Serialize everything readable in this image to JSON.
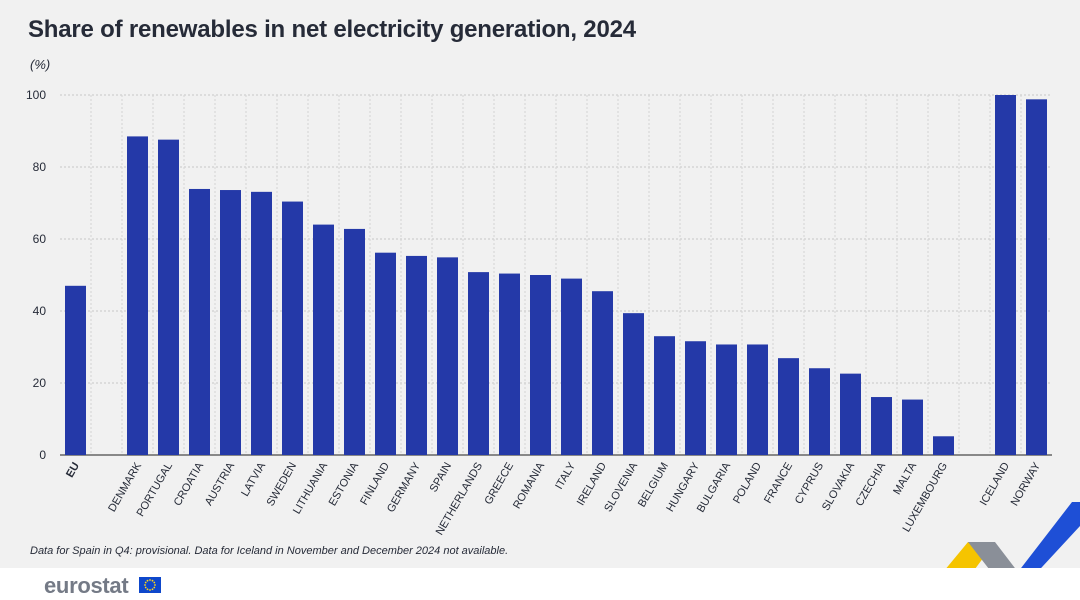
{
  "chart_data": {
    "type": "bar",
    "title": "Share of renewables in net electricity generation, 2024",
    "unit_label": "(%)",
    "categories": [
      "EU",
      "DENMARK",
      "PORTUGAL",
      "CROATIA",
      "AUSTRIA",
      "LATVIA",
      "SWEDEN",
      "LITHUANIA",
      "ESTONIA",
      "FINLAND",
      "GERMANY",
      "SPAIN",
      "NETHERLANDS",
      "GREECE",
      "ROMANIA",
      "ITALY",
      "IRELAND",
      "SLOVENIA",
      "BELGIUM",
      "HUNGARY",
      "BULGARIA",
      "POLAND",
      "FRANCE",
      "CYPRUS",
      "SLOVAKIA",
      "CZECHIA",
      "MALTA",
      "LUXEMBOURG",
      "ICELAND",
      "NORWAY"
    ],
    "values": [
      47.0,
      88.5,
      87.6,
      73.9,
      73.6,
      73.1,
      70.4,
      64.0,
      62.8,
      56.2,
      55.3,
      54.9,
      50.8,
      50.4,
      50.0,
      49.0,
      45.5,
      39.4,
      33.0,
      31.6,
      30.7,
      30.7,
      26.9,
      24.1,
      22.6,
      16.1,
      15.4,
      5.2,
      100.0,
      98.8
    ],
    "yticks": [
      0,
      20,
      40,
      60,
      80,
      100
    ],
    "ylim": [
      0,
      100
    ],
    "grid": true,
    "bar_color": "#2439a8",
    "highlight_categories": [
      "EU"
    ]
  },
  "note": "Data for Spain in Q4: provisional. Data for Iceland in November and December 2024 not available.",
  "brand": {
    "name": "eurostat",
    "colors": {
      "text": "#747a86",
      "flag_blue": "#0e47cb",
      "flag_star": "#ffd617",
      "stripe_yellow": "#f5c400",
      "stripe_blue": "#1e4fd6"
    }
  }
}
